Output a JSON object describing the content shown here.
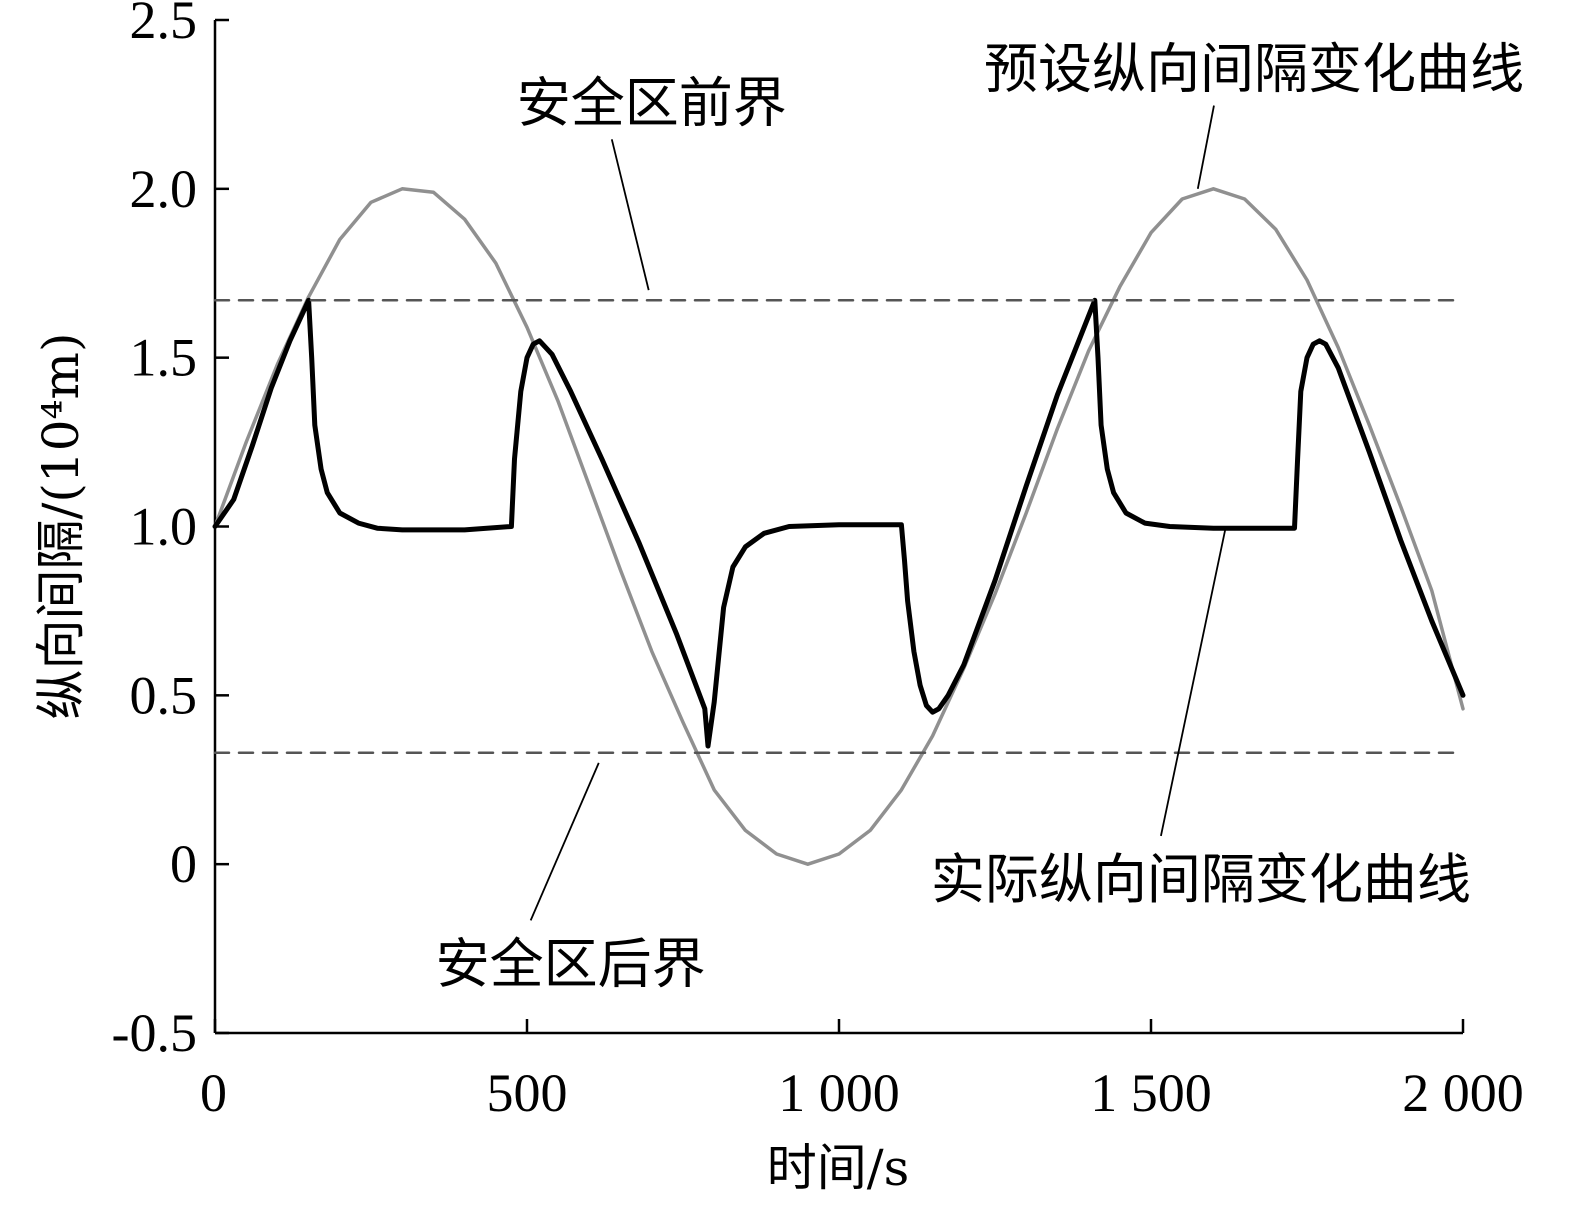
{
  "chart_data": {
    "type": "line",
    "xlabel": "时间/s",
    "ylabel": "纵向间隔/(10⁴m)",
    "xlim": [
      0,
      2000
    ],
    "ylim": [
      -0.5,
      2.5
    ],
    "xticks": [
      0,
      500,
      1000,
      1500,
      2000
    ],
    "xtick_labels": [
      "0",
      "500",
      "1 000",
      "1 500",
      "2 000"
    ],
    "yticks": [
      -0.5,
      0,
      0.5,
      1.0,
      1.5,
      2.0,
      2.5
    ],
    "ytick_labels": [
      "-0.5",
      "0",
      "0.5",
      "1.0",
      "1.5",
      "2.0",
      "2.5"
    ],
    "grid": false,
    "series": [
      {
        "name": "预设纵向间隔变化曲线",
        "color": "#909090",
        "style": "solid",
        "x": [
          0,
          50,
          100,
          150,
          200,
          250,
          300,
          350,
          400,
          450,
          500,
          550,
          600,
          650,
          700,
          750,
          800,
          850,
          900,
          950,
          1000,
          1050,
          1100,
          1150,
          1200,
          1250,
          1300,
          1350,
          1400,
          1450,
          1500,
          1550,
          1600,
          1650,
          1700,
          1750,
          1800,
          1850,
          1900,
          1950,
          2000
        ],
        "y": [
          1.0,
          1.25,
          1.48,
          1.68,
          1.85,
          1.96,
          2.0,
          1.99,
          1.91,
          1.78,
          1.59,
          1.37,
          1.12,
          0.87,
          0.63,
          0.42,
          0.22,
          0.1,
          0.03,
          0.0,
          0.03,
          0.1,
          0.22,
          0.38,
          0.58,
          0.8,
          1.04,
          1.29,
          1.52,
          1.71,
          1.87,
          1.97,
          2.0,
          1.97,
          1.88,
          1.73,
          1.53,
          1.3,
          1.06,
          0.81,
          0.46
        ]
      },
      {
        "name": "实际纵向间隔变化曲线",
        "color": "#000000",
        "style": "solid",
        "x": [
          0,
          30,
          60,
          90,
          120,
          150,
          155,
          160,
          170,
          180,
          200,
          230,
          260,
          300,
          400,
          475,
          480,
          490,
          500,
          510,
          520,
          540,
          570,
          620,
          680,
          740,
          785,
          790,
          800,
          815,
          830,
          850,
          880,
          920,
          1000,
          1100,
          1105,
          1110,
          1120,
          1130,
          1140,
          1150,
          1160,
          1175,
          1200,
          1250,
          1300,
          1350,
          1410,
          1415,
          1420,
          1430,
          1440,
          1460,
          1490,
          1530,
          1600,
          1700,
          1730,
          1735,
          1740,
          1750,
          1760,
          1770,
          1780,
          1800,
          1850,
          1900,
          1950,
          2000
        ],
        "y": [
          1.0,
          1.08,
          1.24,
          1.41,
          1.55,
          1.67,
          1.5,
          1.3,
          1.17,
          1.1,
          1.04,
          1.01,
          0.995,
          0.99,
          0.99,
          1.0,
          1.2,
          1.4,
          1.5,
          1.54,
          1.55,
          1.51,
          1.4,
          1.2,
          0.95,
          0.68,
          0.46,
          0.35,
          0.48,
          0.76,
          0.88,
          0.94,
          0.98,
          1.0,
          1.005,
          1.005,
          0.9,
          0.78,
          0.63,
          0.53,
          0.47,
          0.45,
          0.46,
          0.5,
          0.59,
          0.84,
          1.12,
          1.39,
          1.67,
          1.5,
          1.3,
          1.17,
          1.1,
          1.04,
          1.01,
          1.0,
          0.995,
          0.995,
          0.995,
          1.2,
          1.4,
          1.5,
          1.54,
          1.55,
          1.54,
          1.47,
          1.22,
          0.96,
          0.72,
          0.5
        ]
      },
      {
        "name": "安全区前界",
        "color": "#555555",
        "style": "dashed",
        "x": [
          0,
          2000
        ],
        "y": [
          1.67,
          1.67
        ]
      },
      {
        "name": "安全区后界",
        "color": "#555555",
        "style": "dashed",
        "x": [
          0,
          2000
        ],
        "y": [
          0.33,
          0.33
        ]
      }
    ],
    "annotations": [
      {
        "text": "安全区前界",
        "x": 700,
        "y": 2.2,
        "target": [
          695,
          1.7
        ]
      },
      {
        "text": "预设纵向间隔变化曲线",
        "x": 1665,
        "y": 2.3,
        "target": [
          1575,
          2.0
        ]
      },
      {
        "text": "实际纵向间隔变化曲线",
        "x": 1580,
        "y": -0.1,
        "target": [
          1620,
          1.0
        ]
      },
      {
        "text": "安全区后界",
        "x": 570,
        "y": -0.35,
        "target": [
          615,
          0.3
        ]
      }
    ]
  }
}
